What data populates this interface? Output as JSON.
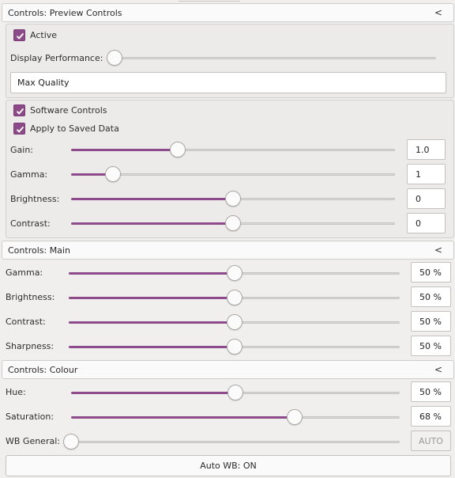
{
  "preview": {
    "title": "Controls: Preview Controls",
    "collapse_glyph": "<",
    "active": {
      "label": "Active",
      "checked": true
    },
    "display_performance": {
      "label": "Display Performance:",
      "level": 0.0
    },
    "quality_select": {
      "value": "Max Quality"
    },
    "software_controls": {
      "label": "Software Controls",
      "checked": true
    },
    "apply_saved": {
      "label": "Apply to Saved Data",
      "checked": true
    },
    "sliders": [
      {
        "label": "Gain:",
        "value": "1.0",
        "level": 0.33
      },
      {
        "label": "Gamma:",
        "value": "1",
        "level": 0.13
      },
      {
        "label": "Brightness:",
        "value": "0",
        "level": 0.5
      },
      {
        "label": "Contrast:",
        "value": "0",
        "level": 0.5
      }
    ]
  },
  "main": {
    "title": "Controls: Main",
    "collapse_glyph": "<",
    "sliders": [
      {
        "label": "Gamma:",
        "value": "50 %",
        "level": 0.5
      },
      {
        "label": "Brightness:",
        "value": "50 %",
        "level": 0.5
      },
      {
        "label": "Contrast:",
        "value": "50 %",
        "level": 0.5
      },
      {
        "label": "Sharpness:",
        "value": "50 %",
        "level": 0.5
      }
    ]
  },
  "colour": {
    "title": "Controls: Colour",
    "collapse_glyph": "<",
    "sliders": [
      {
        "label": "Hue:",
        "value": "50 %",
        "level": 0.5
      },
      {
        "label": "Saturation:",
        "value": "68 %",
        "level": 0.68
      },
      {
        "label": "WB General:",
        "value": "AUTO",
        "level": 0.0
      }
    ],
    "auto_wb_button": "Auto WB: ON"
  },
  "colors": {
    "accent": "#8e4b8c",
    "checkbox": "#8c4a88"
  },
  "icons": {
    "check": "check-icon",
    "collapse": "chevron-left-icon"
  }
}
